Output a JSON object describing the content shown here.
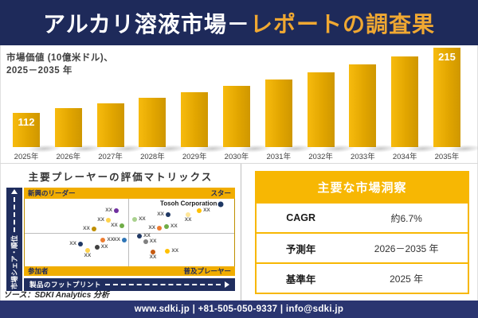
{
  "header": {
    "title_part1": "アルカリ溶液市場－",
    "title_part2": "レポートの調査果"
  },
  "chart_data": [
    {
      "type": "bar",
      "title": "市場価値 (10億米ドル)、",
      "title_line2": "2025－2035 年",
      "categories": [
        "2025年",
        "2026年",
        "2027年",
        "2028年",
        "2029年",
        "2030年",
        "2031年",
        "2032年",
        "2033年",
        "2034年",
        "2035年"
      ],
      "values": [
        112,
        120,
        127,
        136,
        145,
        155,
        165,
        176,
        188,
        201,
        215
      ],
      "value_labels": [
        "112",
        "",
        "",
        "",
        "",
        "",
        "",
        "",
        "",
        "",
        "215"
      ],
      "xlabel": "",
      "ylabel": "市場価値 (10億米ドル)",
      "ylim": [
        0,
        215
      ],
      "bar_color": "#e2a600",
      "grid": false,
      "legend": "none"
    },
    {
      "type": "scatter",
      "title": "主要プレーヤーの評価マトリックス",
      "quadrants": {
        "top_left": "新興のリーダー",
        "top_right": "スター",
        "bottom_left": "参加者",
        "bottom_right": "普及プレーヤー"
      },
      "xlabel": "製品のフットプリント",
      "ylabel": "市場シェア・順位",
      "points": [
        {
          "x": 43.7,
          "y": 17.1,
          "color": "#7030a0",
          "label": "XX",
          "side": "left"
        },
        {
          "x": 39.9,
          "y": 31.3,
          "color": "#ffd34d",
          "label": "XX",
          "side": "left"
        },
        {
          "x": 46.3,
          "y": 40.2,
          "color": "#70ad47",
          "label": "XX",
          "side": "left"
        },
        {
          "x": 33.0,
          "y": 44.3,
          "color": "#bf8f00",
          "label": "XX",
          "side": "left"
        },
        {
          "x": 52.5,
          "y": 30.5,
          "color": "#a9d18e",
          "label": "XX",
          "side": "right"
        },
        {
          "x": 68.4,
          "y": 23.2,
          "color": "#1f3864",
          "label": "XX",
          "side": "left"
        },
        {
          "x": 78.0,
          "y": 24.0,
          "color": "#ffe699",
          "label": "XX",
          "side": "below"
        },
        {
          "x": 83.3,
          "y": 17.9,
          "color": "#ffc000",
          "label": "XX",
          "side": "right"
        },
        {
          "x": 93.5,
          "y": 7.7,
          "color": "#1f3864",
          "label": "Tosoh Corporation",
          "side": "left",
          "named": true
        },
        {
          "x": 64.3,
          "y": 43.5,
          "color": "#ed7d31",
          "label": "XX",
          "side": "left"
        },
        {
          "x": 67.7,
          "y": 40.6,
          "color": "#70ad47",
          "label": "XX",
          "side": "right"
        },
        {
          "x": 54.8,
          "y": 55.7,
          "color": "#203864",
          "label": "XX",
          "side": "right"
        },
        {
          "x": 57.7,
          "y": 63.8,
          "color": "#808080",
          "label": "XX",
          "side": "right"
        },
        {
          "x": 37.4,
          "y": 61.0,
          "color": "#ed7d31",
          "label": "XX",
          "side": "right"
        },
        {
          "x": 47.5,
          "y": 60.6,
          "color": "#2e75b6",
          "label": "XX",
          "side": "left"
        },
        {
          "x": 26.6,
          "y": 66.7,
          "color": "#203864",
          "label": "XX",
          "side": "left"
        },
        {
          "x": 34.5,
          "y": 72.0,
          "color": "#404040",
          "label": "XX",
          "side": "right"
        },
        {
          "x": 30.0,
          "y": 76.0,
          "color": "#ffd34d",
          "label": "XX",
          "side": "below"
        },
        {
          "x": 61.2,
          "y": 79.3,
          "color": "#c55a11",
          "label": "XX",
          "side": "below"
        },
        {
          "x": 68.2,
          "y": 78.0,
          "color": "#ffc000",
          "label": "XX",
          "side": "right"
        }
      ]
    }
  ],
  "insights": {
    "title": "主要な市場洞察",
    "rows": [
      {
        "label": "CAGR",
        "value": "約6.7%"
      },
      {
        "label": "予測年",
        "value": "2026－2035 年"
      },
      {
        "label": "基準年",
        "value": "2025 年"
      }
    ]
  },
  "source_note": "ソース：SDKI Analytics 分析",
  "footer": {
    "text": "www.sdki.jp | +81-505-050-9337 | info@sdki.jp"
  },
  "colors": {
    "navy": "#1e2a5a",
    "amber": "#f1ad00",
    "table_yellow": "#f7b703",
    "title_yellow": "#f0a832",
    "footer_navy": "#2a3570"
  }
}
